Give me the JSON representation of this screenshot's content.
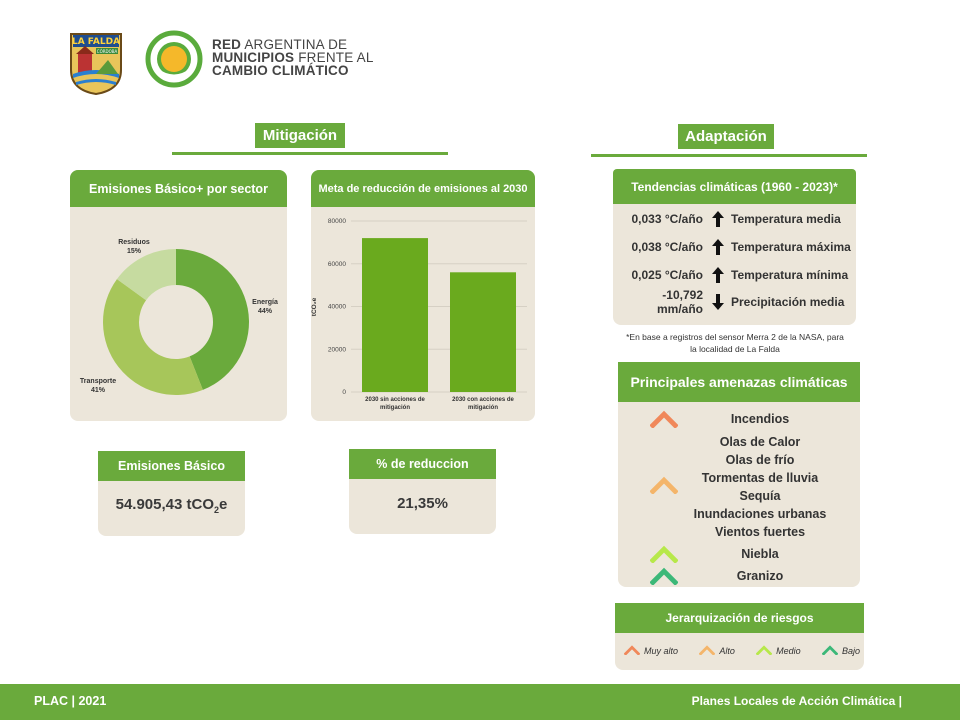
{
  "logos": {
    "lafalda_text": "LA FALDA",
    "lafalda_sub": "CÓRDOBA",
    "brand_line1_bold": "RED",
    "brand_line1_rest": " ARGENTINA DE",
    "brand_line2_bold": "MUNICIPIOS",
    "brand_line2_rest": " FRENTE AL",
    "brand_line3_bold": "CAMBIO CLIMÁTICO"
  },
  "mitigacion": {
    "title": "Mitigación",
    "sector_card_title": "Emisiones Básico+ por sector",
    "goal_card_title": "Meta de reducción de emisiones al 2030",
    "basic_title": "Emisiones Básico",
    "basic_value": "54.905,43 tCO",
    "basic_sub": "2",
    "basic_unit_end": "e",
    "reduction_title": "% de reduccion",
    "reduction_value": "21,35%"
  },
  "chart_data": [
    {
      "type": "pie",
      "title": "Emisiones Básico+ por sector",
      "slices": [
        {
          "label": "Energía",
          "pct": "44%",
          "value": 44,
          "color": "#6aaa3c"
        },
        {
          "label": "Transporte",
          "pct": "41%",
          "value": 41,
          "color": "#a7c65a"
        },
        {
          "label": "Residuos",
          "pct": "15%",
          "value": 15,
          "color": "#c6dba0"
        }
      ]
    },
    {
      "type": "bar",
      "title": "Meta de reducción de emisiones al 2030",
      "ylabel": "tCO₂e",
      "ylim": [
        0,
        80000
      ],
      "yticks": [
        "0",
        "20000",
        "40000",
        "60000",
        "80000"
      ],
      "categories": [
        [
          "2030 sin acciones de",
          "mitigación"
        ],
        [
          "2030 con acciones de",
          "mitigación"
        ]
      ],
      "values": [
        72000,
        56000
      ],
      "color": "#6aaa1e",
      "grid": true
    }
  ],
  "adaptacion": {
    "title": "Adaptación",
    "trends_title": "Tendencias climáticas (1960 - 2023)*",
    "trends": [
      {
        "value": "0,033 °C/año",
        "dir": "up",
        "name": "Temperatura media"
      },
      {
        "value": "0,038 °C/año",
        "dir": "up",
        "name": "Temperatura máxima"
      },
      {
        "value": "0,025 °C/año",
        "dir": "up",
        "name": "Temperatura mínima"
      },
      {
        "value": "-10,792 mm/año",
        "dir": "down",
        "name": "Precipitación media"
      }
    ],
    "footnote_line1": "*En base a registros del sensor Merra 2 de la NASA, para",
    "footnote_line2": "la localidad de La Falda",
    "threats_title": "Principales amenazas climáticas",
    "threats": {
      "very_high": [
        "Incendios"
      ],
      "high": [
        "Olas de Calor",
        "Olas de frío",
        "Tormentas de lluvia",
        "Sequía",
        "Inundaciones urbanas",
        "Vientos fuertes"
      ],
      "medium": [
        "Niebla"
      ],
      "low": [
        "Granizo"
      ]
    },
    "risk_title": "Jerarquización de riesgos",
    "risk_levels": [
      {
        "label": "Muy alto",
        "color": "#f0885a"
      },
      {
        "label": "Alto",
        "color": "#f4b56a"
      },
      {
        "label": "Medio",
        "color": "#b7e84a"
      },
      {
        "label": "Bajo",
        "color": "#3cb878"
      }
    ]
  },
  "footer": {
    "left": "PLAC | 2021",
    "right": "Planes Locales de Acción Climática |"
  },
  "colors": {
    "accent": "#6aaa3c",
    "card": "#ece6da"
  }
}
